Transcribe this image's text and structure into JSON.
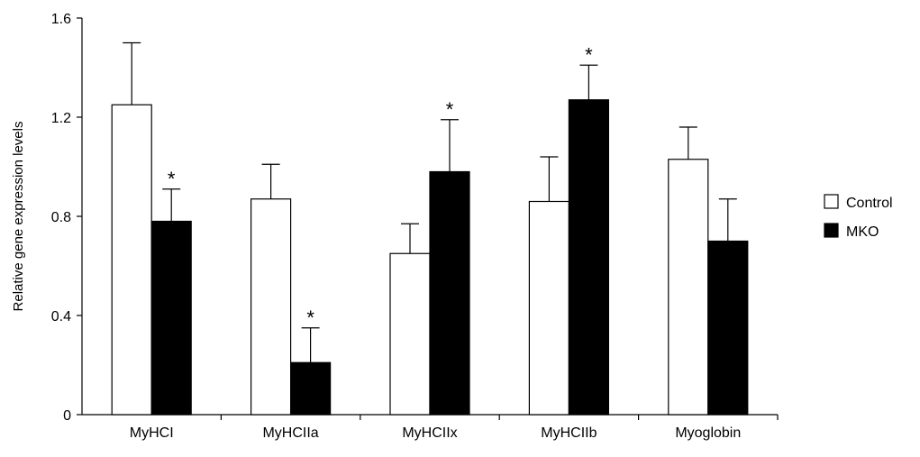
{
  "chart_data": {
    "type": "bar",
    "ylabel": "Relative gene expression levels",
    "xlabel": "",
    "ylim": [
      0,
      1.6
    ],
    "yticks": [
      "0",
      "0.4",
      "0.8",
      "1.2",
      "1.6"
    ],
    "ytick_values": [
      0,
      0.4,
      0.8,
      1.2,
      1.6
    ],
    "categories": [
      "MyHCI",
      "MyHCIIa",
      "MyHCIIx",
      "MyHCIIb",
      "Myoglobin"
    ],
    "series": [
      {
        "name": "Control",
        "color": "#ffffff",
        "values": [
          1.25,
          0.87,
          0.65,
          0.86,
          1.03
        ],
        "errors": [
          0.25,
          0.14,
          0.12,
          0.18,
          0.13
        ],
        "significance": [
          "",
          "",
          "",
          "",
          ""
        ]
      },
      {
        "name": "MKO",
        "color": "#000000",
        "values": [
          0.78,
          0.21,
          0.98,
          1.27,
          0.7
        ],
        "errors": [
          0.13,
          0.14,
          0.21,
          0.14,
          0.17
        ],
        "significance": [
          "*",
          "*",
          "*",
          "*",
          ""
        ]
      }
    ],
    "legend": {
      "placement": "right",
      "entries": [
        "Control",
        "MKO"
      ]
    },
    "grid": false
  }
}
